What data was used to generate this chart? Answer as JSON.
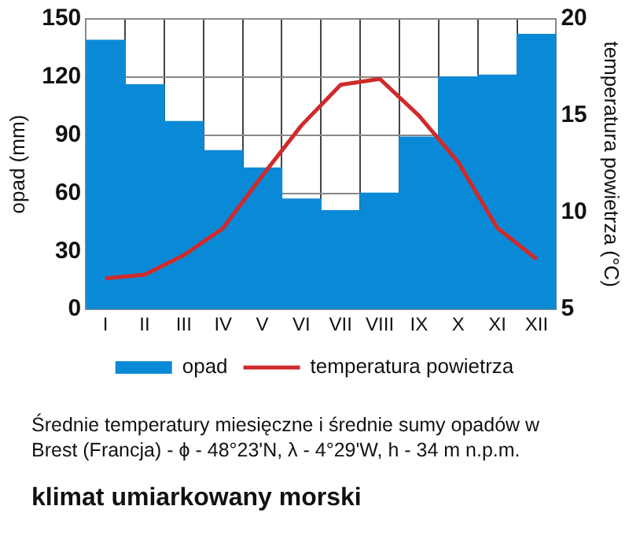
{
  "chart_data": {
    "type": "bar",
    "title": "klimat umiarkowany morski",
    "categories": [
      "I",
      "II",
      "III",
      "IV",
      "V",
      "VI",
      "VII",
      "VIII",
      "IX",
      "X",
      "XI",
      "XII"
    ],
    "series": [
      {
        "name": "opad",
        "color": "#0a8ad6",
        "values": [
          139,
          116,
          97,
          82,
          73,
          57,
          51,
          60,
          89,
          120,
          121,
          142
        ]
      },
      {
        "name": "temperatura powietrza",
        "type": "line",
        "axis": "y2",
        "color": "#d02a2a",
        "values": [
          6.6,
          6.8,
          7.8,
          9.2,
          11.9,
          14.5,
          16.6,
          16.9,
          15.0,
          12.6,
          9.2,
          7.6
        ]
      }
    ],
    "ylabel": "opad (mm)",
    "y2label": "temperatura powietrza (°C)",
    "ylim": [
      0,
      150
    ],
    "yticks": [
      0,
      30,
      60,
      90,
      120,
      150
    ],
    "y2lim": [
      5,
      20
    ],
    "y2ticks": [
      5,
      10,
      15,
      20
    ],
    "grid": true,
    "legend": "bottom",
    "marker": "none",
    "line_style": "solid",
    "annotations": [
      "Średnie temperatury miesięczne i średnie sumy opadów w Brest (Francja) - ϕ - 48°23'N, λ - 4°29'W, h - 34 m n.p.m."
    ]
  }
}
